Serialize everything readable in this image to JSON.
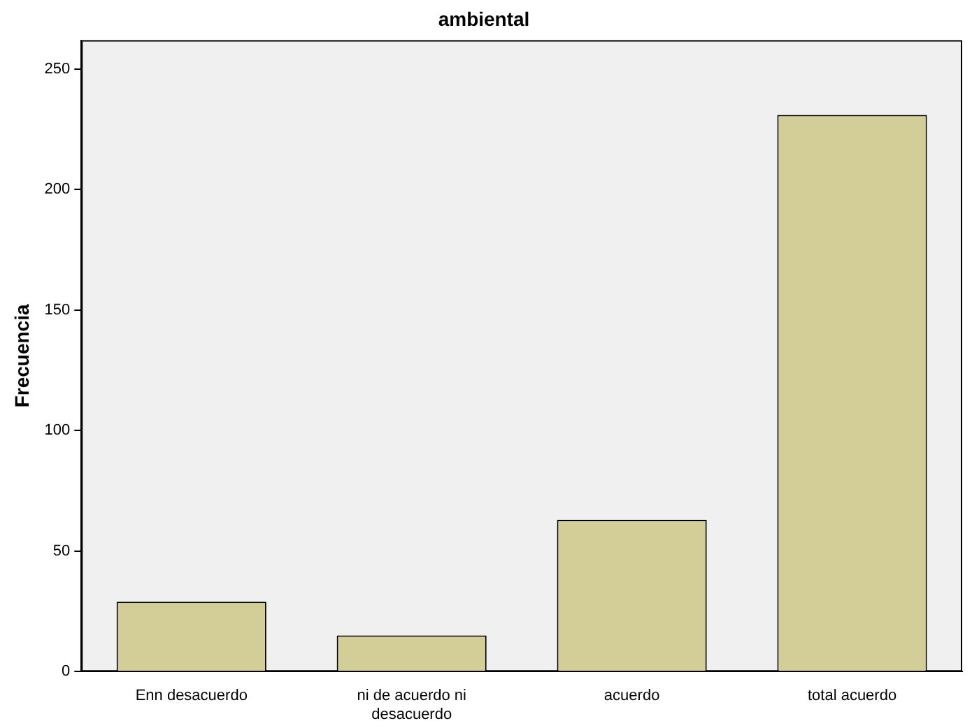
{
  "chart_data": {
    "type": "bar",
    "title": "ambiental",
    "ylabel": "Frecuencia",
    "categories": [
      "Enn desacuerdo",
      "ni de acuerdo ni desacuerdo",
      "acuerdo",
      "total acuerdo"
    ],
    "values": [
      29,
      15,
      63,
      231
    ],
    "color": "#d3ce97",
    "ylim": [
      0,
      262
    ],
    "yticks": [
      0,
      50,
      100,
      150,
      200,
      250
    ],
    "grid": false,
    "legend": false
  }
}
